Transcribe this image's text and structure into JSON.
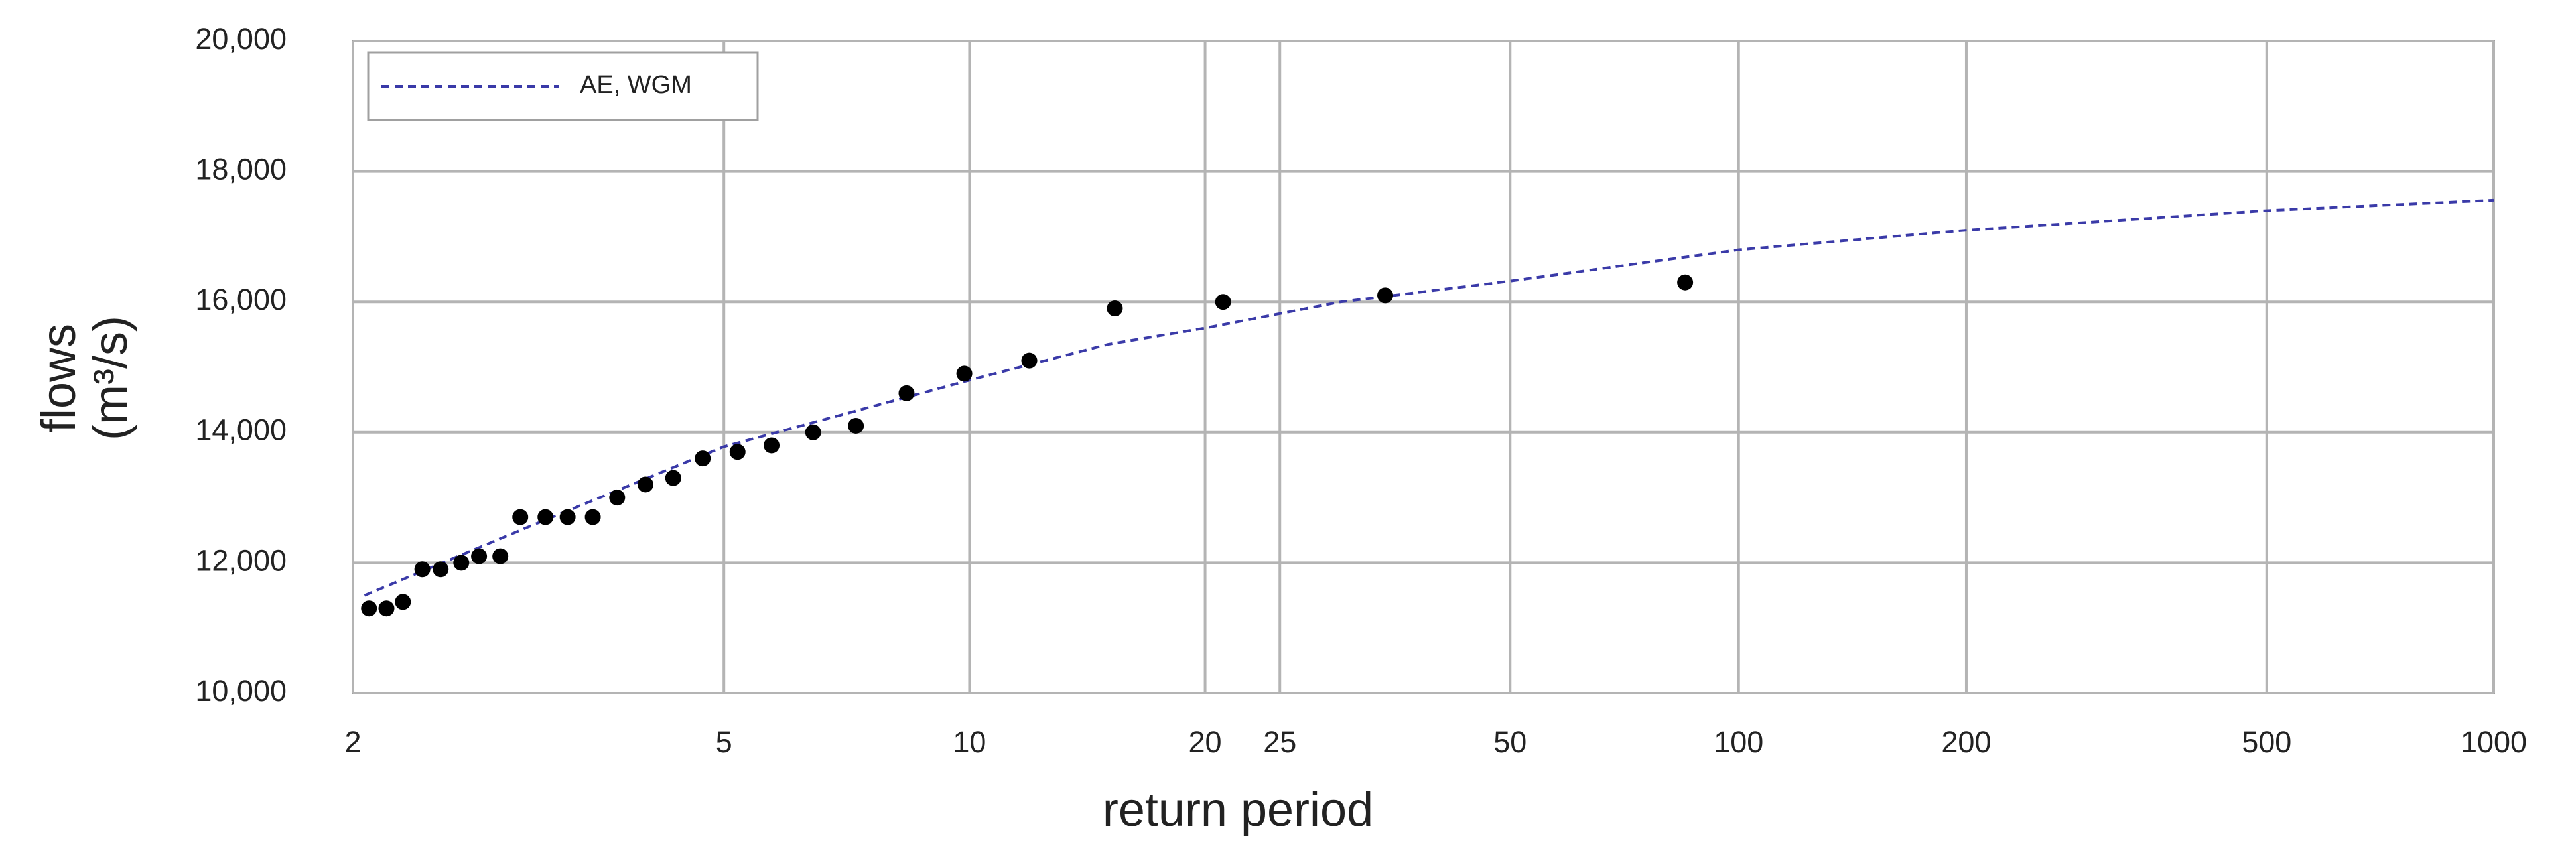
{
  "chart_data": {
    "type": "scatter",
    "x_label": "return period",
    "y_label": [
      "flows",
      "(m³/s)"
    ],
    "x_scale": "gumbel",
    "grid": true,
    "legend": "upper left",
    "xlim": [
      2,
      1000
    ],
    "xticks": [
      2,
      5,
      10,
      20,
      25,
      50,
      100,
      200,
      500,
      1000
    ],
    "ylim": [
      10000,
      20000
    ],
    "yticks": [
      {
        "value": 10000,
        "label": "10,000"
      },
      {
        "value": 12000,
        "label": "12,000"
      },
      {
        "value": 14000,
        "label": "14,000"
      },
      {
        "value": 16000,
        "label": "16,000"
      },
      {
        "value": 18000,
        "label": "18,000"
      },
      {
        "value": 20000,
        "label": "20,000"
      }
    ],
    "series": [
      {
        "name": "AE, WGM",
        "type": "line",
        "color": "#3a3aa8",
        "dashed": true,
        "x": [
          2.05,
          3,
          5,
          10,
          15,
          20,
          30,
          50,
          100,
          200,
          500,
          1000
        ],
        "values": [
          11500,
          12550,
          13780,
          14800,
          15350,
          15600,
          16000,
          16320,
          16800,
          17100,
          17400,
          17560
        ]
      },
      {
        "type": "scatter",
        "color": "#000000",
        "x": [
          2.07,
          2.15,
          2.23,
          2.33,
          2.43,
          2.55,
          2.66,
          2.8,
          2.94,
          3.13,
          3.31,
          3.53,
          3.76,
          4.05,
          4.36,
          4.72,
          5.19,
          5.7,
          6.4,
          7.22,
          8.34,
          9.85,
          11.9,
          15.3,
          21.1,
          34.3,
          85
        ],
        "values": [
          11300,
          11300,
          11400,
          11900,
          11900,
          12000,
          12100,
          12100,
          12700,
          12700,
          12700,
          12700,
          13000,
          13200,
          13300,
          13600,
          13700,
          13800,
          14000,
          14100,
          14600,
          14900,
          15100,
          15900,
          16000,
          16100,
          16300
        ]
      }
    ]
  }
}
